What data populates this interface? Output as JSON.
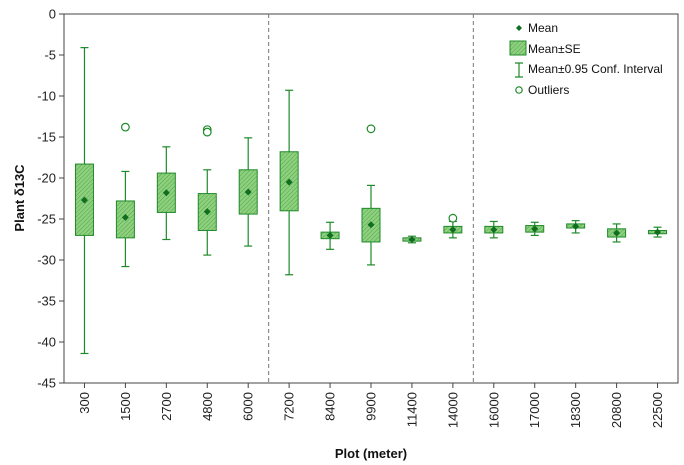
{
  "chart_data": {
    "type": "box",
    "xlabel": "Plot (meter)",
    "ylabel": "Plant δ13C",
    "ylim": [
      -45,
      0
    ],
    "yticks": [
      0,
      -5,
      -10,
      -15,
      -20,
      -25,
      -30,
      -35,
      -40,
      -45
    ],
    "categories": [
      "300",
      "1500",
      "2700",
      "4800",
      "6000",
      "7200",
      "8400",
      "9900",
      "11400",
      "14000",
      "16000",
      "17000",
      "18300",
      "20800",
      "22500"
    ],
    "mean": [
      -22.7,
      -24.8,
      -21.8,
      -24.1,
      -21.7,
      -20.5,
      -27.0,
      -25.7,
      -27.5,
      -26.3,
      -26.3,
      -26.2,
      -25.9,
      -26.7,
      -26.6
    ],
    "se_low": [
      -27.0,
      -27.3,
      -24.2,
      -26.4,
      -24.4,
      -24.0,
      -27.4,
      -27.8,
      -27.7,
      -26.7,
      -26.7,
      -26.6,
      -26.1,
      -27.2,
      -26.8
    ],
    "se_high": [
      -18.3,
      -22.8,
      -19.4,
      -21.9,
      -19.0,
      -16.8,
      -26.6,
      -23.7,
      -27.3,
      -25.9,
      -25.9,
      -25.8,
      -25.6,
      -26.2,
      -26.4
    ],
    "ci_low": [
      -41.4,
      -30.8,
      -27.5,
      -29.4,
      -28.3,
      -31.8,
      -28.7,
      -30.6,
      -27.9,
      -27.3,
      -27.3,
      -27.0,
      -26.7,
      -27.8,
      -27.2
    ],
    "ci_high": [
      -4.1,
      -19.2,
      -16.2,
      -19.0,
      -15.1,
      -9.3,
      -25.4,
      -20.9,
      -27.1,
      -25.3,
      -25.3,
      -25.4,
      -25.2,
      -25.6,
      -26.0
    ],
    "outliers": [
      {
        "category": "1500",
        "y": -13.8
      },
      {
        "category": "4800",
        "y": -14.1
      },
      {
        "category": "4800",
        "y": -14.4
      },
      {
        "category": "9900",
        "y": -14.0
      },
      {
        "category": "14000",
        "y": -24.9
      }
    ],
    "dividers_after": [
      "6000",
      "14000"
    ],
    "legend": {
      "position": "top-right",
      "items": [
        "Mean",
        "Mean±SE",
        "Mean±0.95 Conf. Interval",
        "Outliers"
      ]
    },
    "grid": false,
    "colors": {
      "fill": "#7cc576",
      "stroke": "#1f8a2a",
      "mean": "#0f6e1f",
      "divider": "#777777"
    }
  }
}
